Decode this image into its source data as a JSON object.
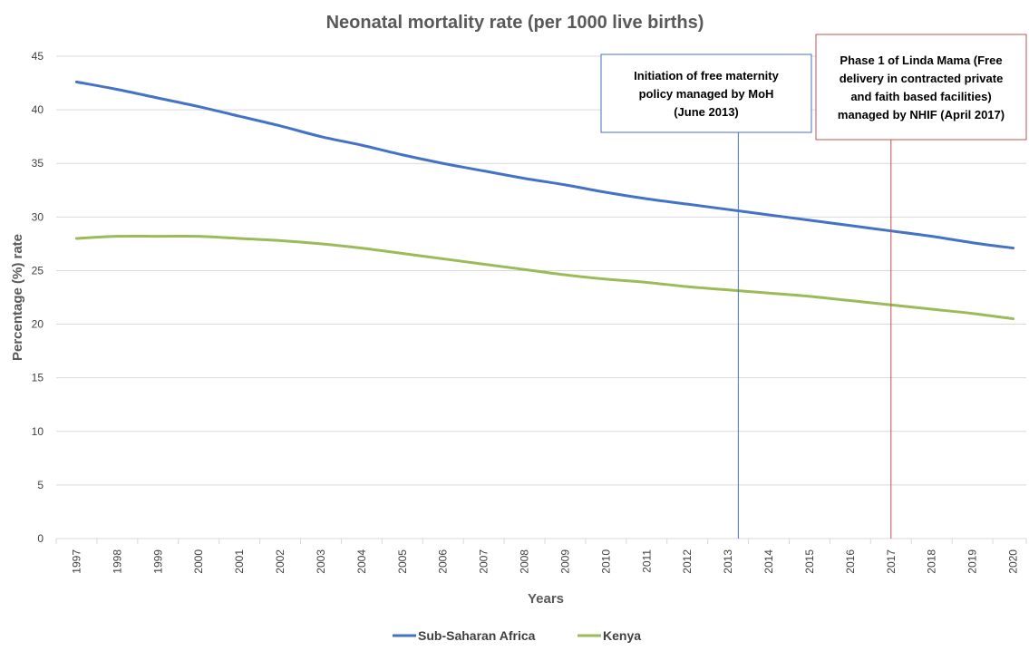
{
  "chart_data": {
    "type": "line",
    "title": "Neonatal mortality rate (per 1000 live births)",
    "xlabel": "Years",
    "ylabel": "Percentage (%) rate",
    "ylim": [
      0,
      45
    ],
    "yticks": [
      0,
      5,
      10,
      15,
      20,
      25,
      30,
      35,
      40,
      45
    ],
    "grid": true,
    "legend": "bottom",
    "x": [
      "1997",
      "1998",
      "1999",
      "2000",
      "2001",
      "2002",
      "2003",
      "2004",
      "2005",
      "2006",
      "2007",
      "2008",
      "2009",
      "2010",
      "2011",
      "2012",
      "2013",
      "2014",
      "2015",
      "2016",
      "2017",
      "2018",
      "2019",
      "2020"
    ],
    "series": [
      {
        "name": "Sub-Saharan Africa",
        "color": "#4472C4",
        "values": [
          42.6,
          41.9,
          41.1,
          40.3,
          39.4,
          38.5,
          37.5,
          36.7,
          35.8,
          35.0,
          34.3,
          33.6,
          33.0,
          32.3,
          31.7,
          31.2,
          30.7,
          30.2,
          29.7,
          29.2,
          28.7,
          28.2,
          27.6,
          27.1
        ]
      },
      {
        "name": "Kenya",
        "color": "#9BBB59",
        "values": [
          28.0,
          28.2,
          28.2,
          28.2,
          28.0,
          27.8,
          27.5,
          27.1,
          26.6,
          26.1,
          25.6,
          25.1,
          24.6,
          24.2,
          23.9,
          23.5,
          23.2,
          22.9,
          22.6,
          22.2,
          21.8,
          21.4,
          21.0,
          20.5
        ]
      }
    ],
    "annotations": [
      {
        "text_lines": [
          "Initiation of free maternity",
          "policy managed by MoH",
          "(June 2013)"
        ],
        "x_value": 2013.25,
        "color": "#4472C4"
      },
      {
        "text_lines": [
          "Phase 1 of Linda Mama (Free",
          "delivery in contracted private",
          "and faith based facilities)",
          "managed by NHIF (April 2017)"
        ],
        "x_value": 2017.0,
        "color": "#C0504D"
      }
    ]
  }
}
